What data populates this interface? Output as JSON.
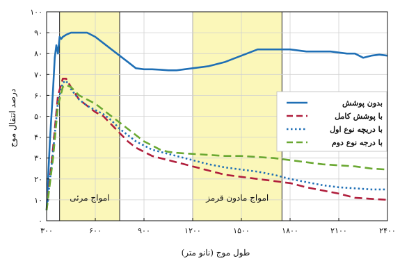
{
  "chart_data": {
    "type": "line",
    "title": "",
    "xlabel": "طول موج (نانو متر)",
    "ylabel": "درصد انتقال موج",
    "xlim": [
      300,
      2400
    ],
    "ylim": [
      0,
      100
    ],
    "x_ticks": [
      300,
      600,
      900,
      1200,
      1500,
      1800,
      2100,
      2400
    ],
    "x_tick_labels": [
      "۳۰۰",
      "۶۰۰",
      "۹۰۰",
      "۱۲۰۰",
      "۱۵۰۰",
      "۱۸۰۰",
      "۲۱۰۰",
      "۲۴۰۰"
    ],
    "y_ticks": [
      0,
      10,
      20,
      30,
      40,
      50,
      60,
      70,
      80,
      90,
      100
    ],
    "y_tick_labels": [
      "۰",
      "۱۰",
      "۲۰",
      "۳۰",
      "۴۰",
      "۵۰",
      "۶۰",
      "۷۰",
      "۸۰",
      "۹۰",
      "۱۰۰"
    ],
    "grid": true,
    "legend_position": "right",
    "regions": [
      {
        "label": "امواج مرئی",
        "x_range": [
          380,
          750
        ],
        "color": "#fbf7b9"
      },
      {
        "label": "امواج مادون قرمز",
        "x_range": [
          1200,
          1750
        ],
        "color": "#fbf7b9"
      }
    ],
    "series": [
      {
        "name": "بدون پوشش",
        "color": "#1f6fb5",
        "style": "solid",
        "x": [
          300,
          320,
          340,
          350,
          360,
          370,
          380,
          390,
          400,
          420,
          450,
          500,
          550,
          600,
          650,
          700,
          750,
          800,
          850,
          900,
          950,
          1000,
          1050,
          1100,
          1150,
          1200,
          1250,
          1300,
          1350,
          1400,
          1450,
          1500,
          1550,
          1600,
          1650,
          1700,
          1750,
          1800,
          1850,
          1900,
          1950,
          2000,
          2050,
          2100,
          2150,
          2200,
          2250,
          2300,
          2350,
          2400
        ],
        "y": [
          5,
          38,
          63,
          78,
          84,
          80,
          88,
          87,
          88,
          89,
          90,
          90,
          90,
          88,
          85,
          82,
          79,
          76,
          73,
          72.5,
          72.5,
          72.3,
          72,
          72,
          72.5,
          73,
          73.5,
          74,
          75,
          76,
          77.5,
          79,
          80.5,
          82,
          82,
          82,
          82,
          82,
          81.5,
          81,
          81,
          81,
          81,
          80.5,
          80,
          80,
          78,
          79,
          79.5,
          79
        ]
      },
      {
        "name": "با پوشش کامل",
        "color": "#b01e3c",
        "style": "dashed",
        "x": [
          300,
          340,
          370,
          400,
          420,
          450,
          500,
          550,
          600,
          650,
          700,
          750,
          800,
          850,
          900,
          950,
          1000,
          1050,
          1100,
          1200,
          1300,
          1400,
          1500,
          1600,
          1700,
          1800,
          1900,
          2000,
          2100,
          2200,
          2300,
          2400
        ],
        "y": [
          5,
          35,
          60,
          68,
          68,
          64,
          58,
          55,
          52,
          50,
          46,
          42,
          38,
          35,
          33,
          31,
          30,
          29,
          28,
          26,
          24,
          22,
          21,
          20,
          19,
          18,
          16,
          14.5,
          13,
          11,
          10.5,
          10
        ]
      },
      {
        "name": "با دریچه نوع اول",
        "color": "#1f6fb5",
        "style": "dotted",
        "x": [
          300,
          340,
          370,
          400,
          420,
          450,
          500,
          550,
          600,
          650,
          700,
          750,
          800,
          850,
          900,
          950,
          1000,
          1050,
          1100,
          1200,
          1300,
          1400,
          1500,
          1600,
          1700,
          1800,
          1900,
          2000,
          2100,
          2200,
          2300,
          2400
        ],
        "y": [
          5,
          33,
          57,
          66,
          67,
          63,
          58,
          55,
          53,
          51,
          48,
          44,
          41,
          38,
          36,
          34,
          33,
          32,
          31,
          29,
          27,
          25.5,
          24.5,
          23.5,
          22,
          20,
          18.5,
          17,
          16,
          15.5,
          15,
          15
        ]
      },
      {
        "name": "با درجه نوع دوم",
        "color": "#6aa832",
        "style": "dashed",
        "x": [
          300,
          340,
          370,
          400,
          420,
          450,
          500,
          550,
          600,
          650,
          700,
          750,
          800,
          850,
          900,
          950,
          1000,
          1050,
          1100,
          1200,
          1300,
          1400,
          1500,
          1600,
          1700,
          1800,
          1900,
          2000,
          2100,
          2200,
          2300,
          2400
        ],
        "y": [
          5,
          30,
          55,
          64,
          65,
          64,
          60,
          58,
          56,
          53,
          50,
          47,
          44,
          41,
          38,
          36,
          34,
          33,
          32.5,
          32,
          31.5,
          31,
          31,
          30.5,
          30,
          29,
          28,
          27,
          26.5,
          26,
          25,
          24.5
        ]
      }
    ]
  }
}
